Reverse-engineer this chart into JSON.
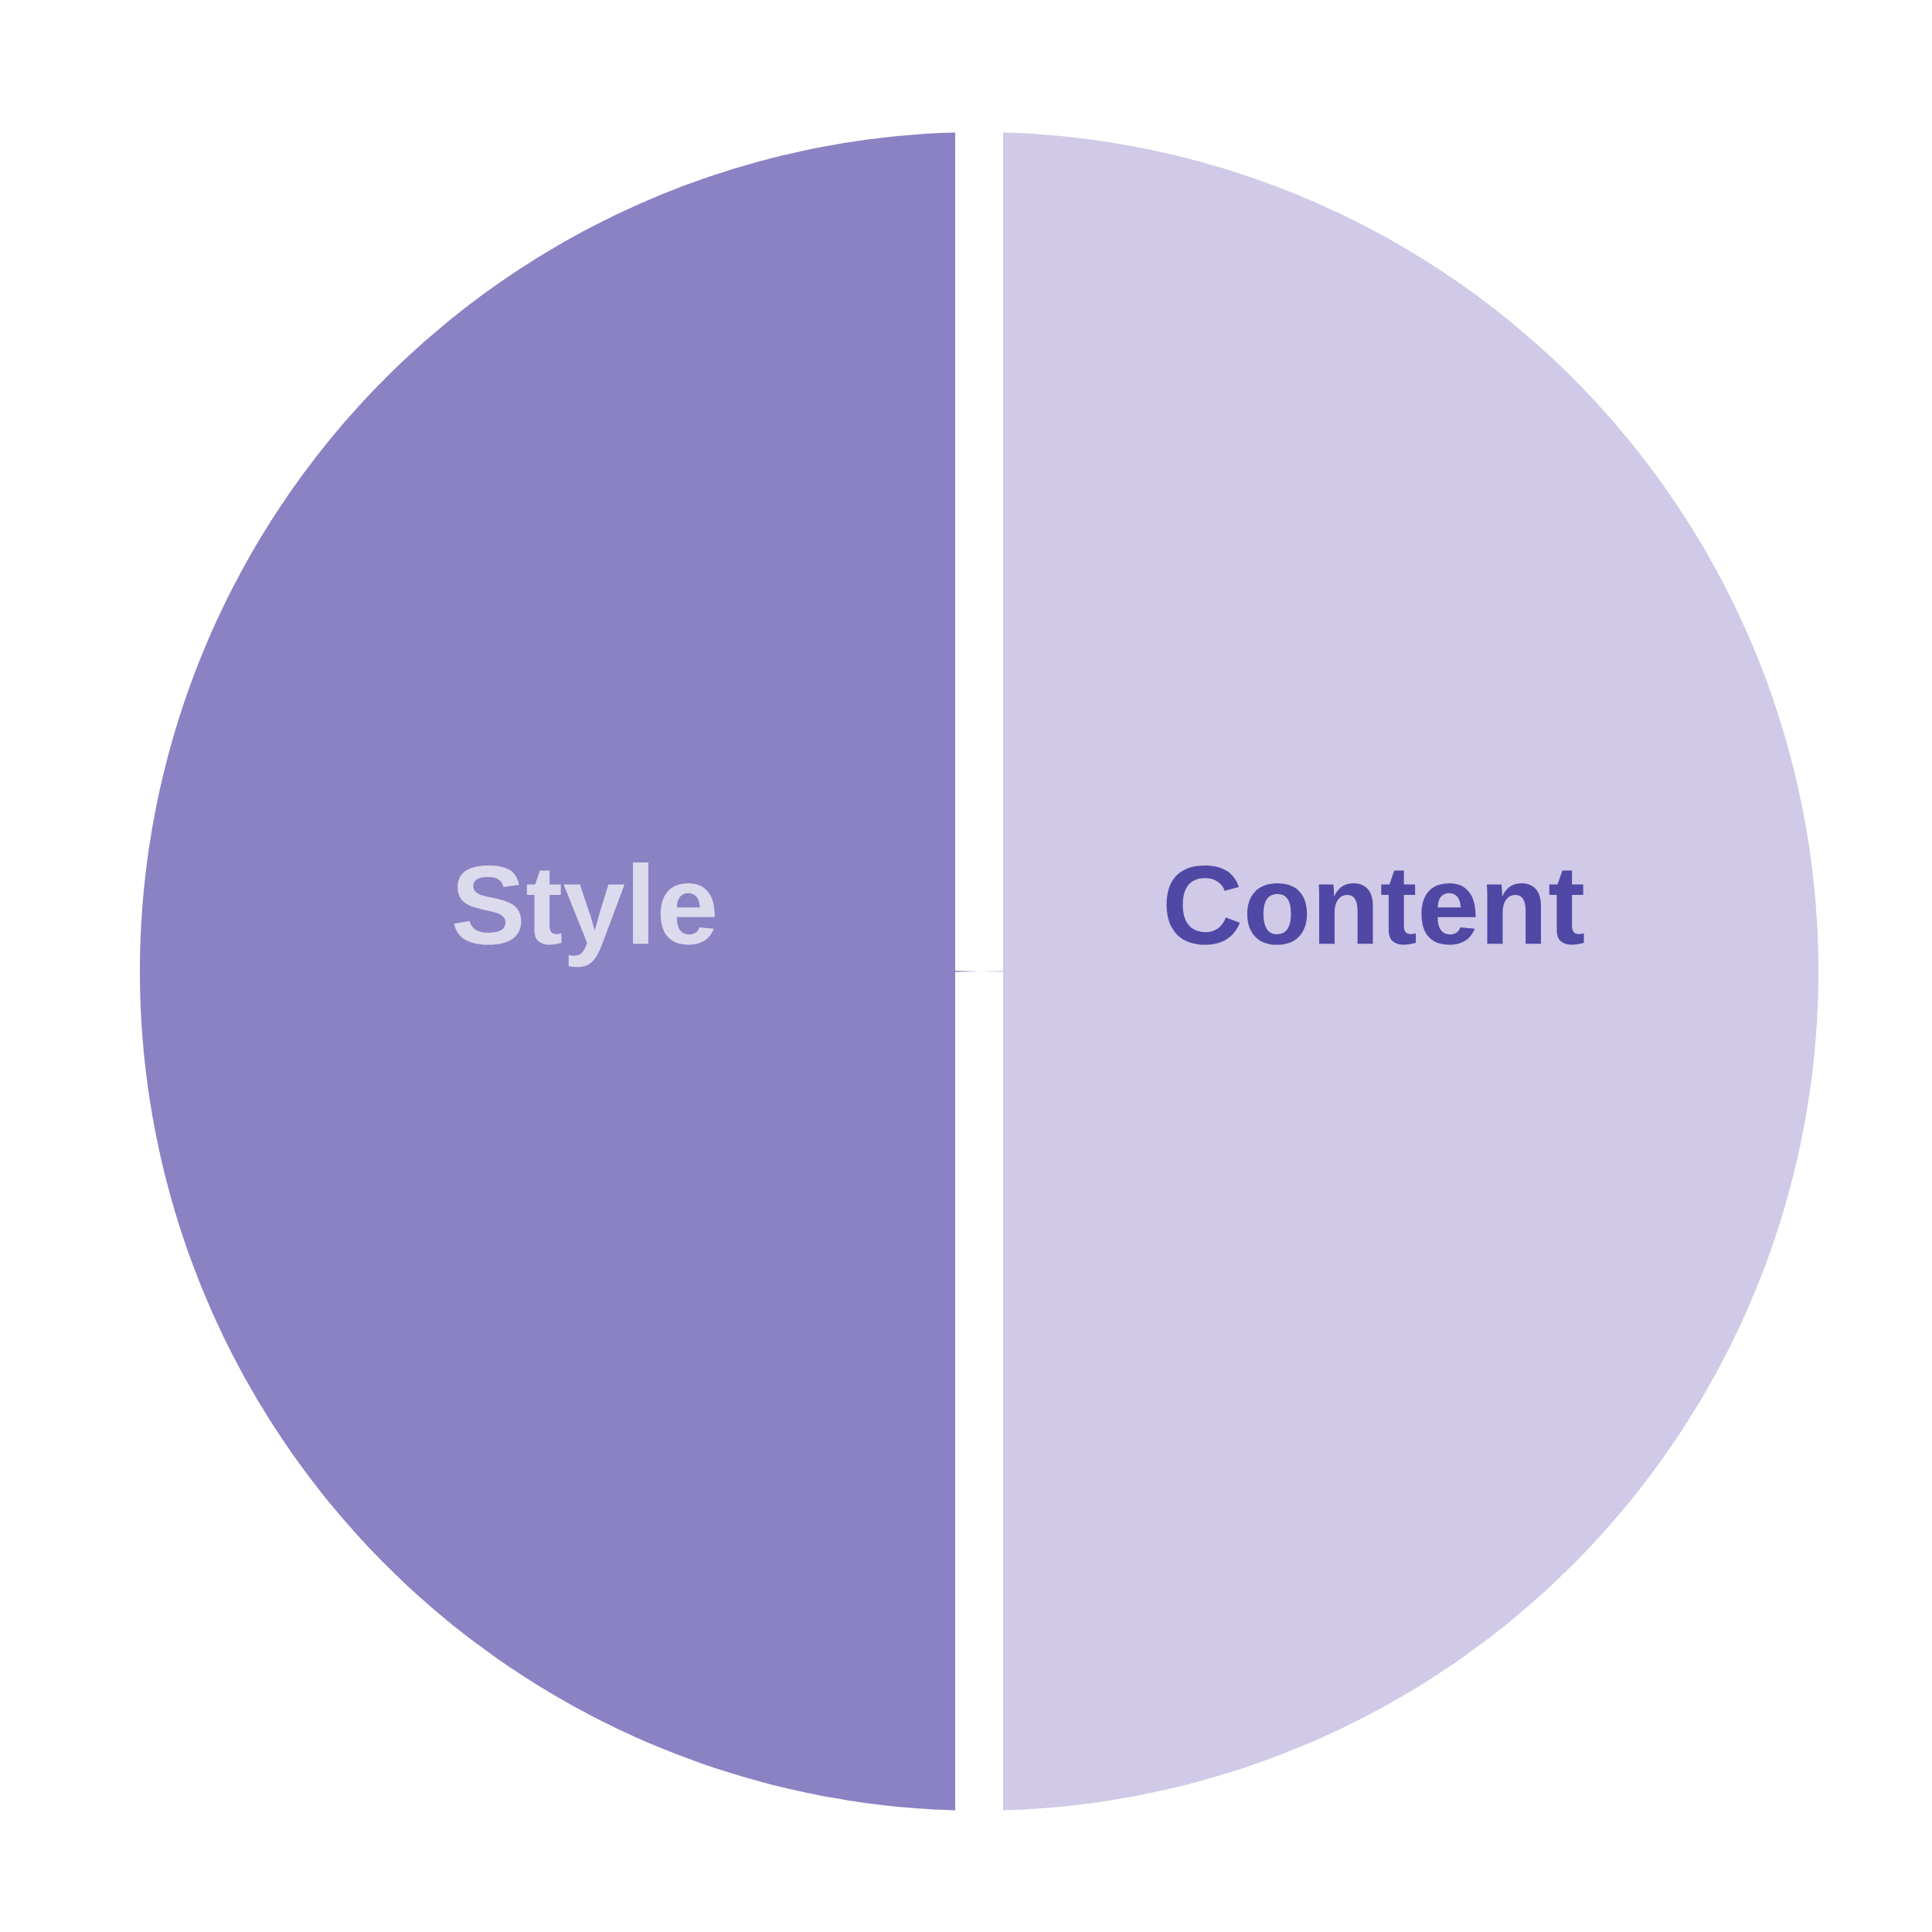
{
  "chart_data": {
    "type": "pie",
    "categories": [
      "Style",
      "Content"
    ],
    "values": [
      50,
      50
    ],
    "colors": [
      "#8b82c4",
      "#d0c9e7"
    ]
  }
}
